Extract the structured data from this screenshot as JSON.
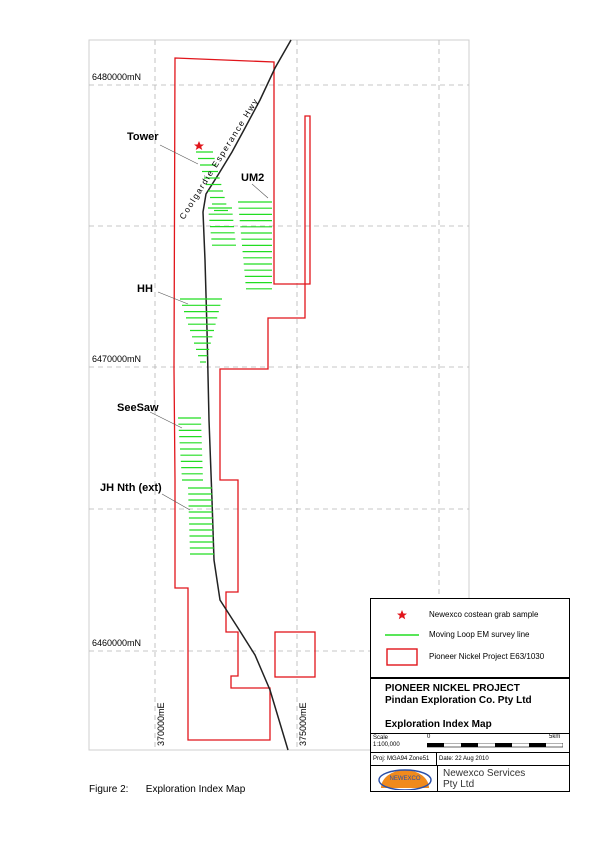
{
  "map": {
    "northings": [
      "6480000mN",
      "6470000mN",
      "6460000mN"
    ],
    "eastings": [
      "370000mE",
      "375000mE"
    ],
    "highway_label": "Coolgardie Esperance Hwy",
    "prospects": {
      "tower": "Tower",
      "um2": "UM2",
      "hh": "HH",
      "seesaw": "SeeSaw",
      "jh_nth": "JH Nth (ext)"
    },
    "colors": {
      "tenement": "#e1151b",
      "survey_line": "#22dd22",
      "sample": "#e1151b",
      "road": "#222222",
      "grid": "#b5b5b5",
      "frame": "#cfcfcf"
    }
  },
  "legend": {
    "sample": "Newexco costean grab sample",
    "survey": "Moving Loop EM survey line",
    "tenement": "Pioneer Nickel Project E63/1030"
  },
  "titleblock": {
    "project": "PIONEER NICKEL PROJECT",
    "company": "Pindan Exploration Co. Pty Ltd",
    "map_title": "Exploration Index Map",
    "scale_label": "Scale",
    "scale_value": "1:100,000",
    "scale_start": "0",
    "scale_end": "5km",
    "projection": "Proj: MGA94 Zone51",
    "date": "Date: 22 Aug 2010",
    "logo_text": "NEWEXCO",
    "services_line1": "Newexco Services",
    "services_line2": "Pty Ltd"
  },
  "caption": {
    "figure": "Figure 2:",
    "title": "Exploration Index Map"
  }
}
